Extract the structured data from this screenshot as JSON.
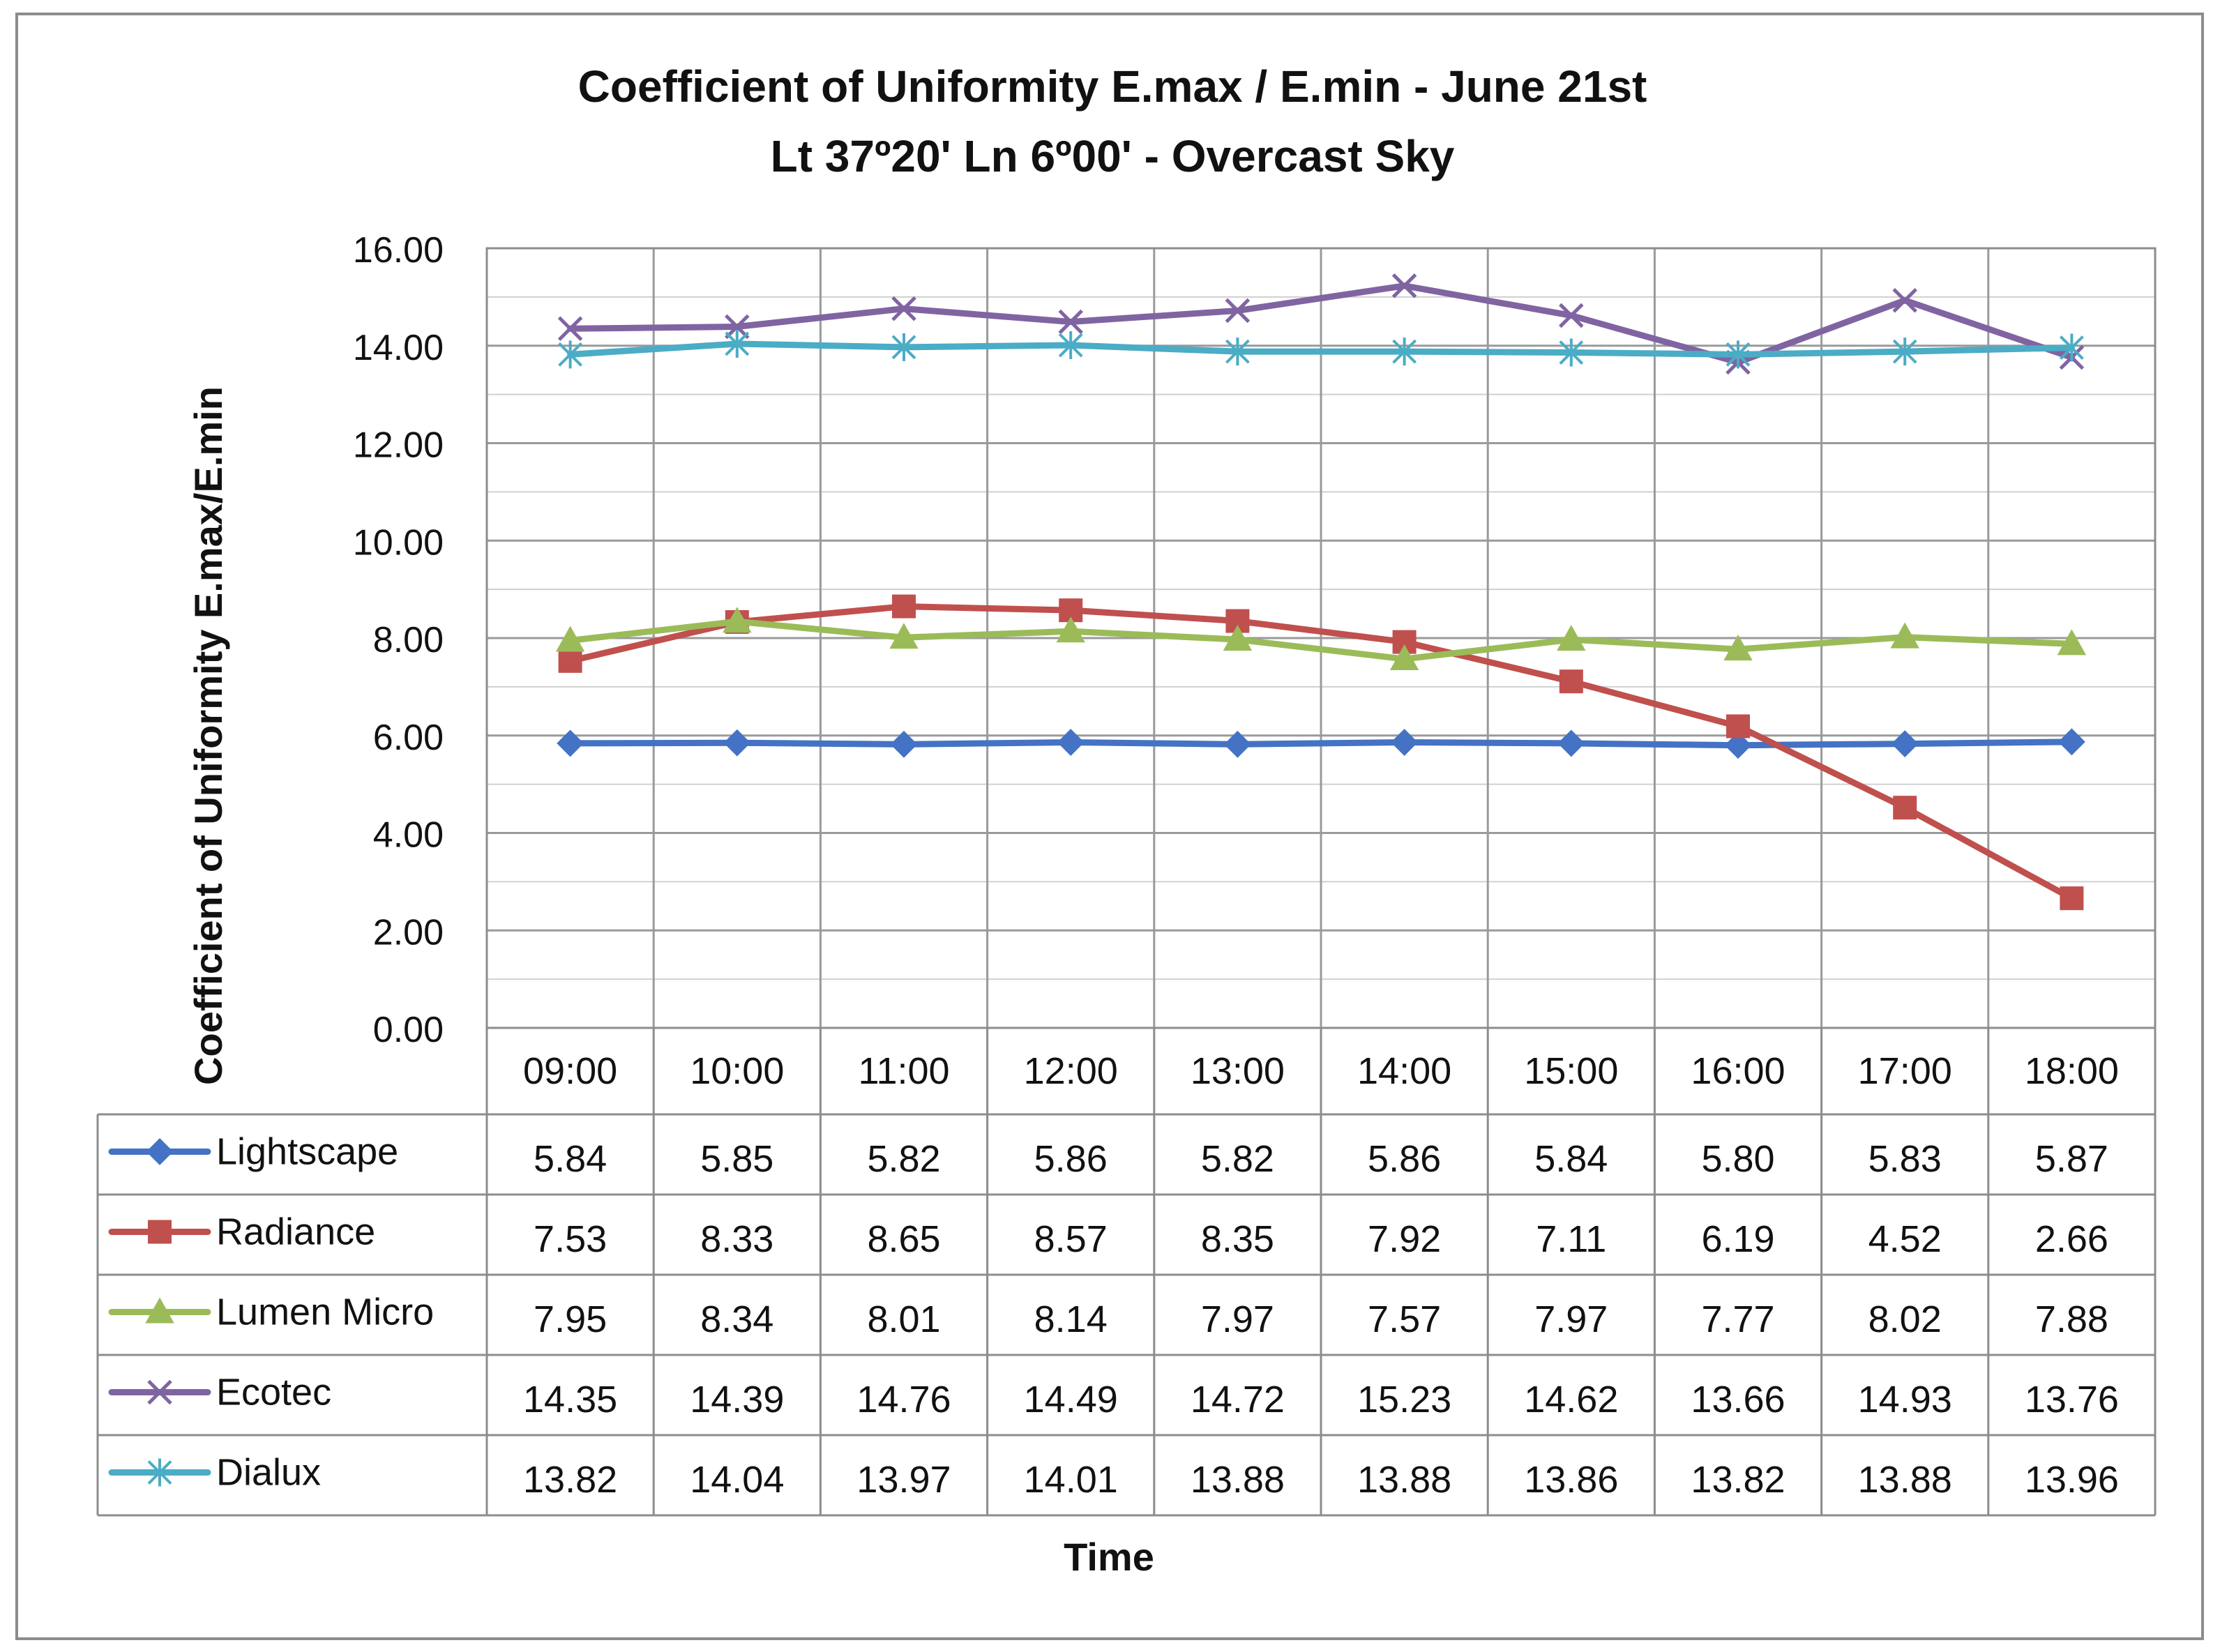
{
  "chart_data": {
    "type": "line",
    "title": "Coefficient of Uniformity E.max / E.min - June 21st",
    "subtitle": "Lt 37º20' Ln 6º00' - Overcast Sky",
    "xlabel": "Time",
    "ylabel": "Coefficient of Uniformity E.max/E.min",
    "ylim": [
      0,
      16
    ],
    "y_ticks": [
      "0.00",
      "2.00",
      "4.00",
      "6.00",
      "8.00",
      "10.00",
      "12.00",
      "14.00",
      "16.00"
    ],
    "grid": true,
    "legend": "data-table-below",
    "categories": [
      "09:00",
      "10:00",
      "11:00",
      "12:00",
      "13:00",
      "14:00",
      "15:00",
      "16:00",
      "17:00",
      "18:00"
    ],
    "series": [
      {
        "name": "Lightscape",
        "color": "#4472C4",
        "marker": "diamond",
        "values": [
          5.84,
          5.85,
          5.82,
          5.86,
          5.82,
          5.86,
          5.84,
          5.8,
          5.83,
          5.87
        ],
        "labels": [
          "5.84",
          "5.85",
          "5.82",
          "5.86",
          "5.82",
          "5.86",
          "5.84",
          "5.80",
          "5.83",
          "5.87"
        ]
      },
      {
        "name": "Radiance",
        "color": "#C0504D",
        "marker": "square",
        "values": [
          7.53,
          8.33,
          8.65,
          8.57,
          8.35,
          7.92,
          7.11,
          6.19,
          4.52,
          2.66
        ],
        "labels": [
          "7.53",
          "8.33",
          "8.65",
          "8.57",
          "8.35",
          "7.92",
          "7.11",
          "6.19",
          "4.52",
          "2.66"
        ]
      },
      {
        "name": "Lumen Micro",
        "color": "#9BBB59",
        "marker": "triangle",
        "values": [
          7.95,
          8.34,
          8.01,
          8.14,
          7.97,
          7.57,
          7.97,
          7.77,
          8.02,
          7.88
        ],
        "labels": [
          "7.95",
          "8.34",
          "8.01",
          "8.14",
          "7.97",
          "7.57",
          "7.97",
          "7.77",
          "8.02",
          "7.88"
        ]
      },
      {
        "name": "Ecotec",
        "color": "#8064A2",
        "marker": "x",
        "values": [
          14.35,
          14.39,
          14.76,
          14.49,
          14.72,
          15.23,
          14.62,
          13.66,
          14.93,
          13.76
        ],
        "labels": [
          "14.35",
          "14.39",
          "14.76",
          "14.49",
          "14.72",
          "15.23",
          "14.62",
          "13.66",
          "14.93",
          "13.76"
        ]
      },
      {
        "name": "Dialux",
        "color": "#4BACC6",
        "marker": "star",
        "values": [
          13.82,
          14.04,
          13.97,
          14.01,
          13.88,
          13.88,
          13.86,
          13.82,
          13.88,
          13.96
        ],
        "labels": [
          "13.82",
          "14.04",
          "13.97",
          "14.01",
          "13.88",
          "13.88",
          "13.86",
          "13.82",
          "13.88",
          "13.96"
        ]
      }
    ]
  }
}
